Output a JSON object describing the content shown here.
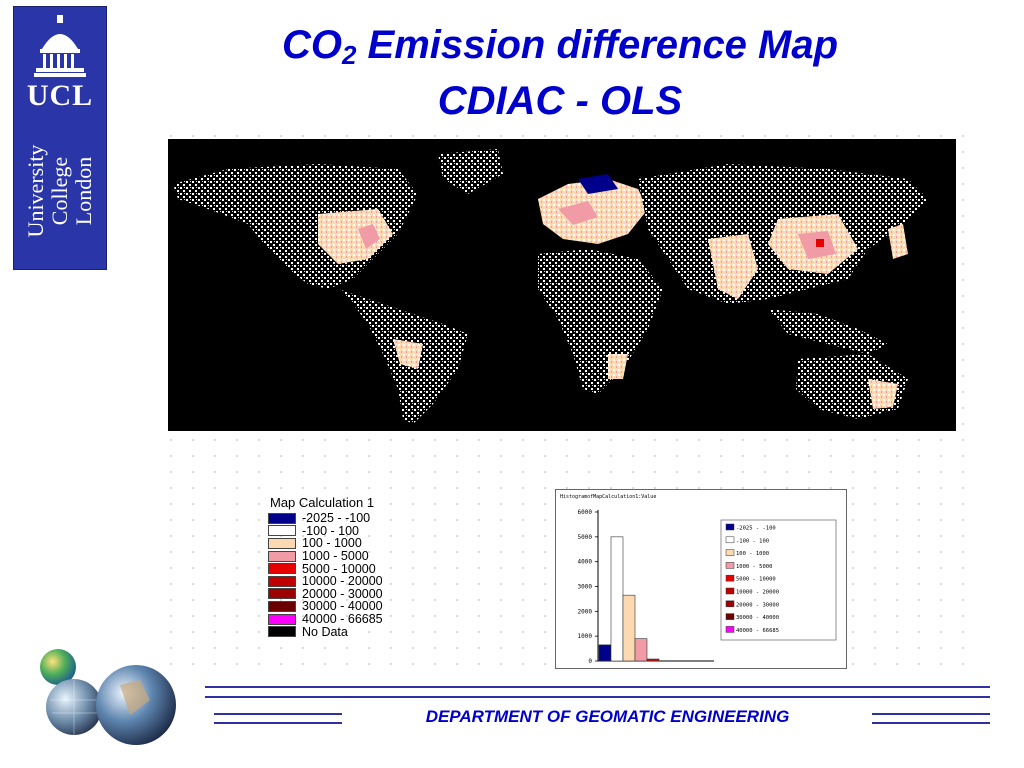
{
  "logo": {
    "abbr": "UCL",
    "name_lines": [
      "University",
      "College",
      "London"
    ]
  },
  "title": {
    "line1_prefix": "CO",
    "line1_subscript": "2",
    "line1_rest": " Emission difference Map",
    "line2": "CDIAC - OLS"
  },
  "legend": {
    "title": "Map Calculation 1",
    "items": [
      {
        "label": "-2025 - -100",
        "color": "#00008b"
      },
      {
        "label": "-100 - 100",
        "color": "#ffffff"
      },
      {
        "label": "100 - 1000",
        "color": "#fcd9b0"
      },
      {
        "label": "1000 - 5000",
        "color": "#f19ba6"
      },
      {
        "label": "5000 - 10000",
        "color": "#e60000"
      },
      {
        "label": "10000 - 20000",
        "color": "#c00000"
      },
      {
        "label": "20000 - 30000",
        "color": "#9c0000"
      },
      {
        "label": "30000 - 40000",
        "color": "#6b0000"
      },
      {
        "label": "40000 - 66685",
        "color": "#ff00ff"
      },
      {
        "label": "No Data",
        "color": "#000000"
      }
    ]
  },
  "chart_data": {
    "type": "bar",
    "title": "HistogramofMapCalculation1:Value",
    "ylim": [
      0,
      6000
    ],
    "yticks": [
      "0",
      "1000",
      "2000",
      "3000",
      "4000",
      "5000",
      "6000"
    ],
    "series": [
      {
        "name": "-2025 - -100",
        "value": 650,
        "color": "#00008b"
      },
      {
        "name": "-100 - 100",
        "value": 5000,
        "color": "#ffffff"
      },
      {
        "name": "100 - 1000",
        "value": 2650,
        "color": "#fcd9b0"
      },
      {
        "name": "1000 - 5000",
        "value": 900,
        "color": "#f19ba6"
      },
      {
        "name": "5000 - 10000",
        "value": 80,
        "color": "#e60000"
      },
      {
        "name": "10000 - 20000",
        "value": 0,
        "color": "#c00000"
      },
      {
        "name": "20000 - 30000",
        "value": 0,
        "color": "#9c0000"
      },
      {
        "name": "30000 - 40000",
        "value": 0,
        "color": "#6b0000"
      },
      {
        "name": "40000 - 66685",
        "value": 0,
        "color": "#ff00ff"
      }
    ],
    "legend_position": "right"
  },
  "footer": {
    "department": "DEPARTMENT OF GEOMATIC ENGINEERING"
  }
}
